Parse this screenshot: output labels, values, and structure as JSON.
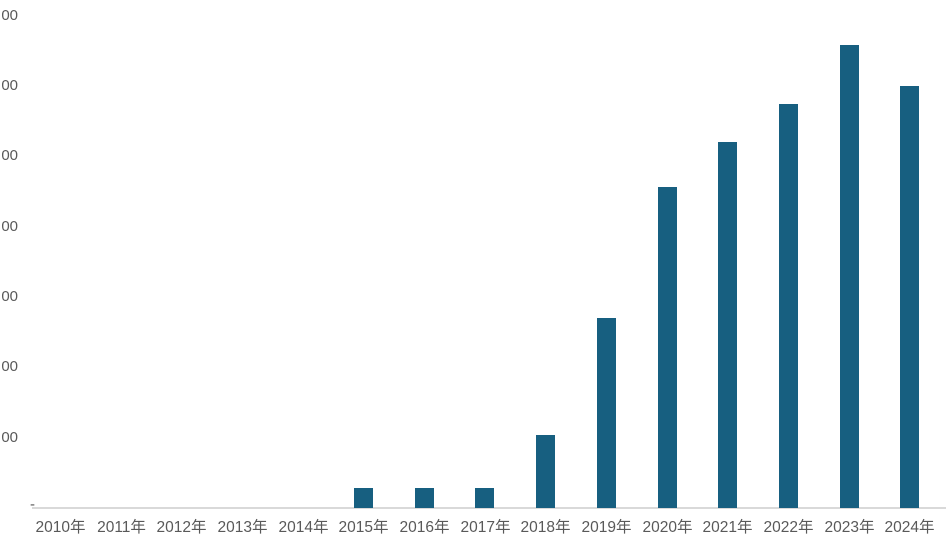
{
  "chart_data": {
    "type": "bar",
    "title": "",
    "xlabel": "",
    "ylabel": "",
    "categories": [
      "2010年",
      "2011年",
      "2012年",
      "2013年",
      "2014年",
      "2015年",
      "2016年",
      "2017年",
      "2018年",
      "2019年",
      "2020年",
      "2021年",
      "2022年",
      "2023年",
      "2024年"
    ],
    "values": [
      0,
      0,
      0,
      0,
      0,
      140,
      140,
      140,
      520,
      1350,
      2280,
      2600,
      2870,
      3290,
      3000
    ],
    "ylim": [
      0,
      3500
    ],
    "ytick_step": 500,
    "ytick_labels_visible": [
      "00",
      "00",
      "00",
      "00",
      "00",
      "00",
      "00"
    ],
    "zero_tick_label": "-",
    "grid": "off",
    "legend": "none",
    "colors": {
      "bar": "#175F80",
      "axis_line": "#D9D9D9",
      "tick_text": "#595959"
    }
  }
}
